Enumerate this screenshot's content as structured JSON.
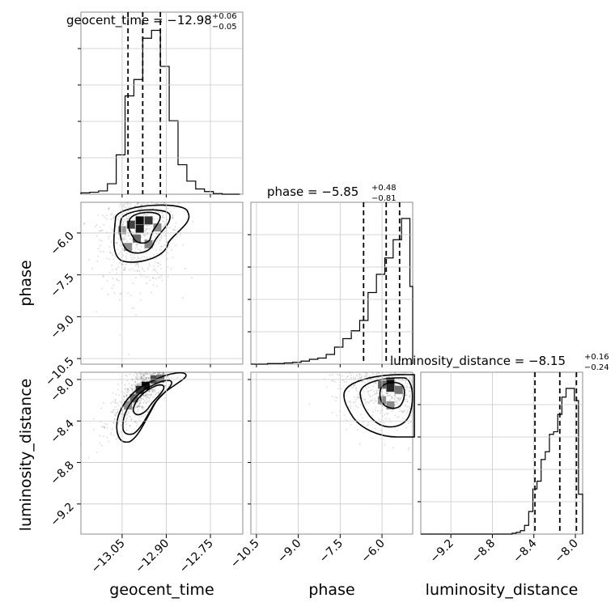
{
  "chart_data": {
    "type": "corner",
    "grid": true,
    "parameters": [
      {
        "key": "geocent_time",
        "label": "geocent_time",
        "title_prefix": "geocent_time = ",
        "median": "−12.98",
        "err_plus": "+0.06",
        "err_minus": "−0.05",
        "range": [
          -13.19,
          -12.64
        ],
        "ticks": [
          -13.05,
          -12.9,
          -12.75
        ],
        "tick_labels": [
          "−13.05",
          "−12.90",
          "−12.75"
        ],
        "quantiles": [
          -13.03,
          -12.98,
          -12.92
        ],
        "hist_edges": [
          -13.19,
          -13.16,
          -13.13,
          -13.1,
          -13.07,
          -13.04,
          -13.01,
          -12.98,
          -12.95,
          -12.92,
          -12.89,
          -12.86,
          -12.83,
          -12.8,
          -12.77,
          -12.74,
          -12.71,
          -12.68,
          -12.65
        ],
        "hist_counts": [
          2,
          3,
          5,
          16,
          60,
          150,
          175,
          238,
          250,
          195,
          112,
          45,
          20,
          8,
          4,
          1,
          0,
          0
        ]
      },
      {
        "key": "phase",
        "label": "phase",
        "title_prefix": "phase = ",
        "median": "−5.85",
        "err_plus": "+0.48",
        "err_minus": "−0.81",
        "range": [
          -10.7,
          -4.9
        ],
        "ticks": [
          -10.5,
          -9.0,
          -7.5,
          -6.0
        ],
        "tick_labels": [
          "−10.5",
          "−9.0",
          "−7.5",
          "−6.0"
        ],
        "quantiles": [
          -6.66,
          -5.85,
          -5.37
        ],
        "hist_edges": [
          -10.7,
          -10.4,
          -10.1,
          -9.8,
          -9.5,
          -9.2,
          -8.9,
          -8.6,
          -8.3,
          -8.0,
          -7.7,
          -7.4,
          -7.1,
          -6.8,
          -6.5,
          -6.2,
          -5.9,
          -5.6,
          -5.3,
          -5.0,
          -4.7
        ],
        "hist_counts": [
          0,
          0,
          1,
          1,
          2,
          3,
          5,
          8,
          10,
          16,
          28,
          42,
          55,
          72,
          118,
          148,
          175,
          205,
          240,
          128
        ]
      },
      {
        "key": "luminosity_distance",
        "label": "luminosity_distance",
        "title_prefix": "luminosity_distance = ",
        "median": "−8.15",
        "err_plus": "+0.16",
        "err_minus": "−0.24",
        "range": [
          -9.49,
          -7.93
        ],
        "ticks": [
          -9.2,
          -8.8,
          -8.4,
          -8.0
        ],
        "tick_labels": [
          "−9.2",
          "−8.8",
          "−8.4",
          "−8.0"
        ],
        "quantiles": [
          -8.39,
          -8.15,
          -7.99
        ],
        "hist_edges": [
          -9.49,
          -9.45,
          -9.41,
          -9.37,
          -9.33,
          -9.29,
          -9.25,
          -9.21,
          -9.17,
          -9.13,
          -9.09,
          -9.05,
          -9.01,
          -8.97,
          -8.93,
          -8.89,
          -8.85,
          -8.81,
          -8.77,
          -8.73,
          -8.69,
          -8.65,
          -8.61,
          -8.57,
          -8.53,
          -8.49,
          -8.45,
          -8.41,
          -8.37,
          -8.33,
          -8.29,
          -8.25,
          -8.21,
          -8.17,
          -8.13,
          -8.09,
          -8.05,
          -8.01,
          -7.97,
          -7.93
        ],
        "hist_counts": [
          0,
          0,
          0,
          0,
          0,
          0,
          0,
          0,
          0,
          0,
          0,
          0,
          0,
          0,
          0,
          0,
          0,
          0,
          0,
          0,
          0,
          0,
          1,
          2,
          4,
          10,
          26,
          52,
          61,
          86,
          95,
          115,
          118,
          138,
          158,
          168,
          168,
          154,
          46
        ]
      }
    ],
    "pairs": [
      {
        "x": "geocent_time",
        "y": "phase",
        "peak": [
          -12.99,
          -5.6
        ],
        "contour_levels": [
          0.4,
          0.86,
          1.39
        ],
        "density_cells": [
          {
            "x": -12.99,
            "y": -5.55,
            "v": 0.95
          },
          {
            "x": -12.99,
            "y": -5.85,
            "v": 0.9
          },
          {
            "x": -12.96,
            "y": -5.55,
            "v": 0.8
          },
          {
            "x": -13.02,
            "y": -5.7,
            "v": 0.75
          },
          {
            "x": -13.0,
            "y": -6.2,
            "v": 0.6
          },
          {
            "x": -12.96,
            "y": -6.4,
            "v": 0.5
          },
          {
            "x": -13.03,
            "y": -6.5,
            "v": 0.45
          },
          {
            "x": -12.93,
            "y": -5.8,
            "v": 0.45
          },
          {
            "x": -13.05,
            "y": -5.9,
            "v": 0.4
          }
        ]
      },
      {
        "x": "geocent_time",
        "y": "luminosity_distance",
        "peak": [
          -12.97,
          -8.06
        ],
        "contour_levels": [
          0.4,
          0.86,
          1.39
        ],
        "density_cells": [
          {
            "x": -12.97,
            "y": -8.06,
            "v": 0.95
          },
          {
            "x": -12.99,
            "y": -8.1,
            "v": 0.8
          },
          {
            "x": -12.94,
            "y": -8.0,
            "v": 0.7
          },
          {
            "x": -13.01,
            "y": -8.18,
            "v": 0.6
          },
          {
            "x": -12.92,
            "y": -7.99,
            "v": 0.55
          },
          {
            "x": -13.03,
            "y": -8.25,
            "v": 0.45
          }
        ]
      },
      {
        "x": "phase",
        "y": "luminosity_distance",
        "peak": [
          -5.7,
          -8.02
        ],
        "contour_levels": [
          0.4,
          0.86,
          1.39
        ],
        "density_cells": [
          {
            "x": -5.7,
            "y": -8.02,
            "v": 0.95
          },
          {
            "x": -5.7,
            "y": -8.08,
            "v": 0.85
          },
          {
            "x": -6.0,
            "y": -8.05,
            "v": 0.6
          },
          {
            "x": -5.4,
            "y": -8.1,
            "v": 0.55
          },
          {
            "x": -6.0,
            "y": -8.2,
            "v": 0.45
          },
          {
            "x": -5.7,
            "y": -8.25,
            "v": 0.45
          }
        ]
      }
    ]
  }
}
